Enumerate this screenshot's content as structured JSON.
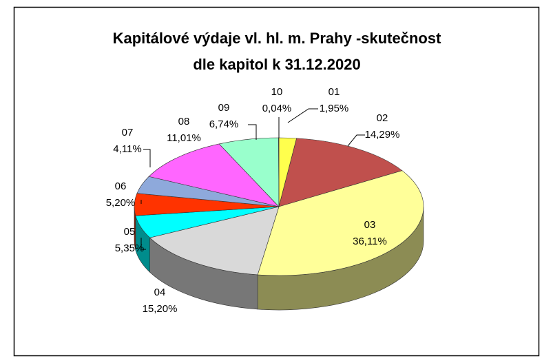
{
  "chart_data": {
    "type": "pie",
    "title": [
      "Kapitálové  výdaje vl. hl. m. Prahy -skutečnost",
      "dle kapitol k 31.12.2020"
    ],
    "categories": [
      "01",
      "02",
      "03",
      "04",
      "05",
      "06",
      "07",
      "08",
      "09",
      "10"
    ],
    "values": [
      1.95,
      14.29,
      36.11,
      15.2,
      5.35,
      5.2,
      4.11,
      11.01,
      6.74,
      0.04
    ],
    "value_labels": [
      "1,95%",
      "14,29%",
      "36,11%",
      "15,20%",
      "5,35%",
      "5,20%",
      "4,11%",
      "11,01%",
      "6,74%",
      "0,04%"
    ],
    "colors": [
      "#ffff4d",
      "#c0504d",
      "#ffff99",
      "#d9d9d9",
      "#00ffff",
      "#ff3300",
      "#8ea9db",
      "#ff66ff",
      "#99ffcc",
      "#ffcc00"
    ]
  }
}
